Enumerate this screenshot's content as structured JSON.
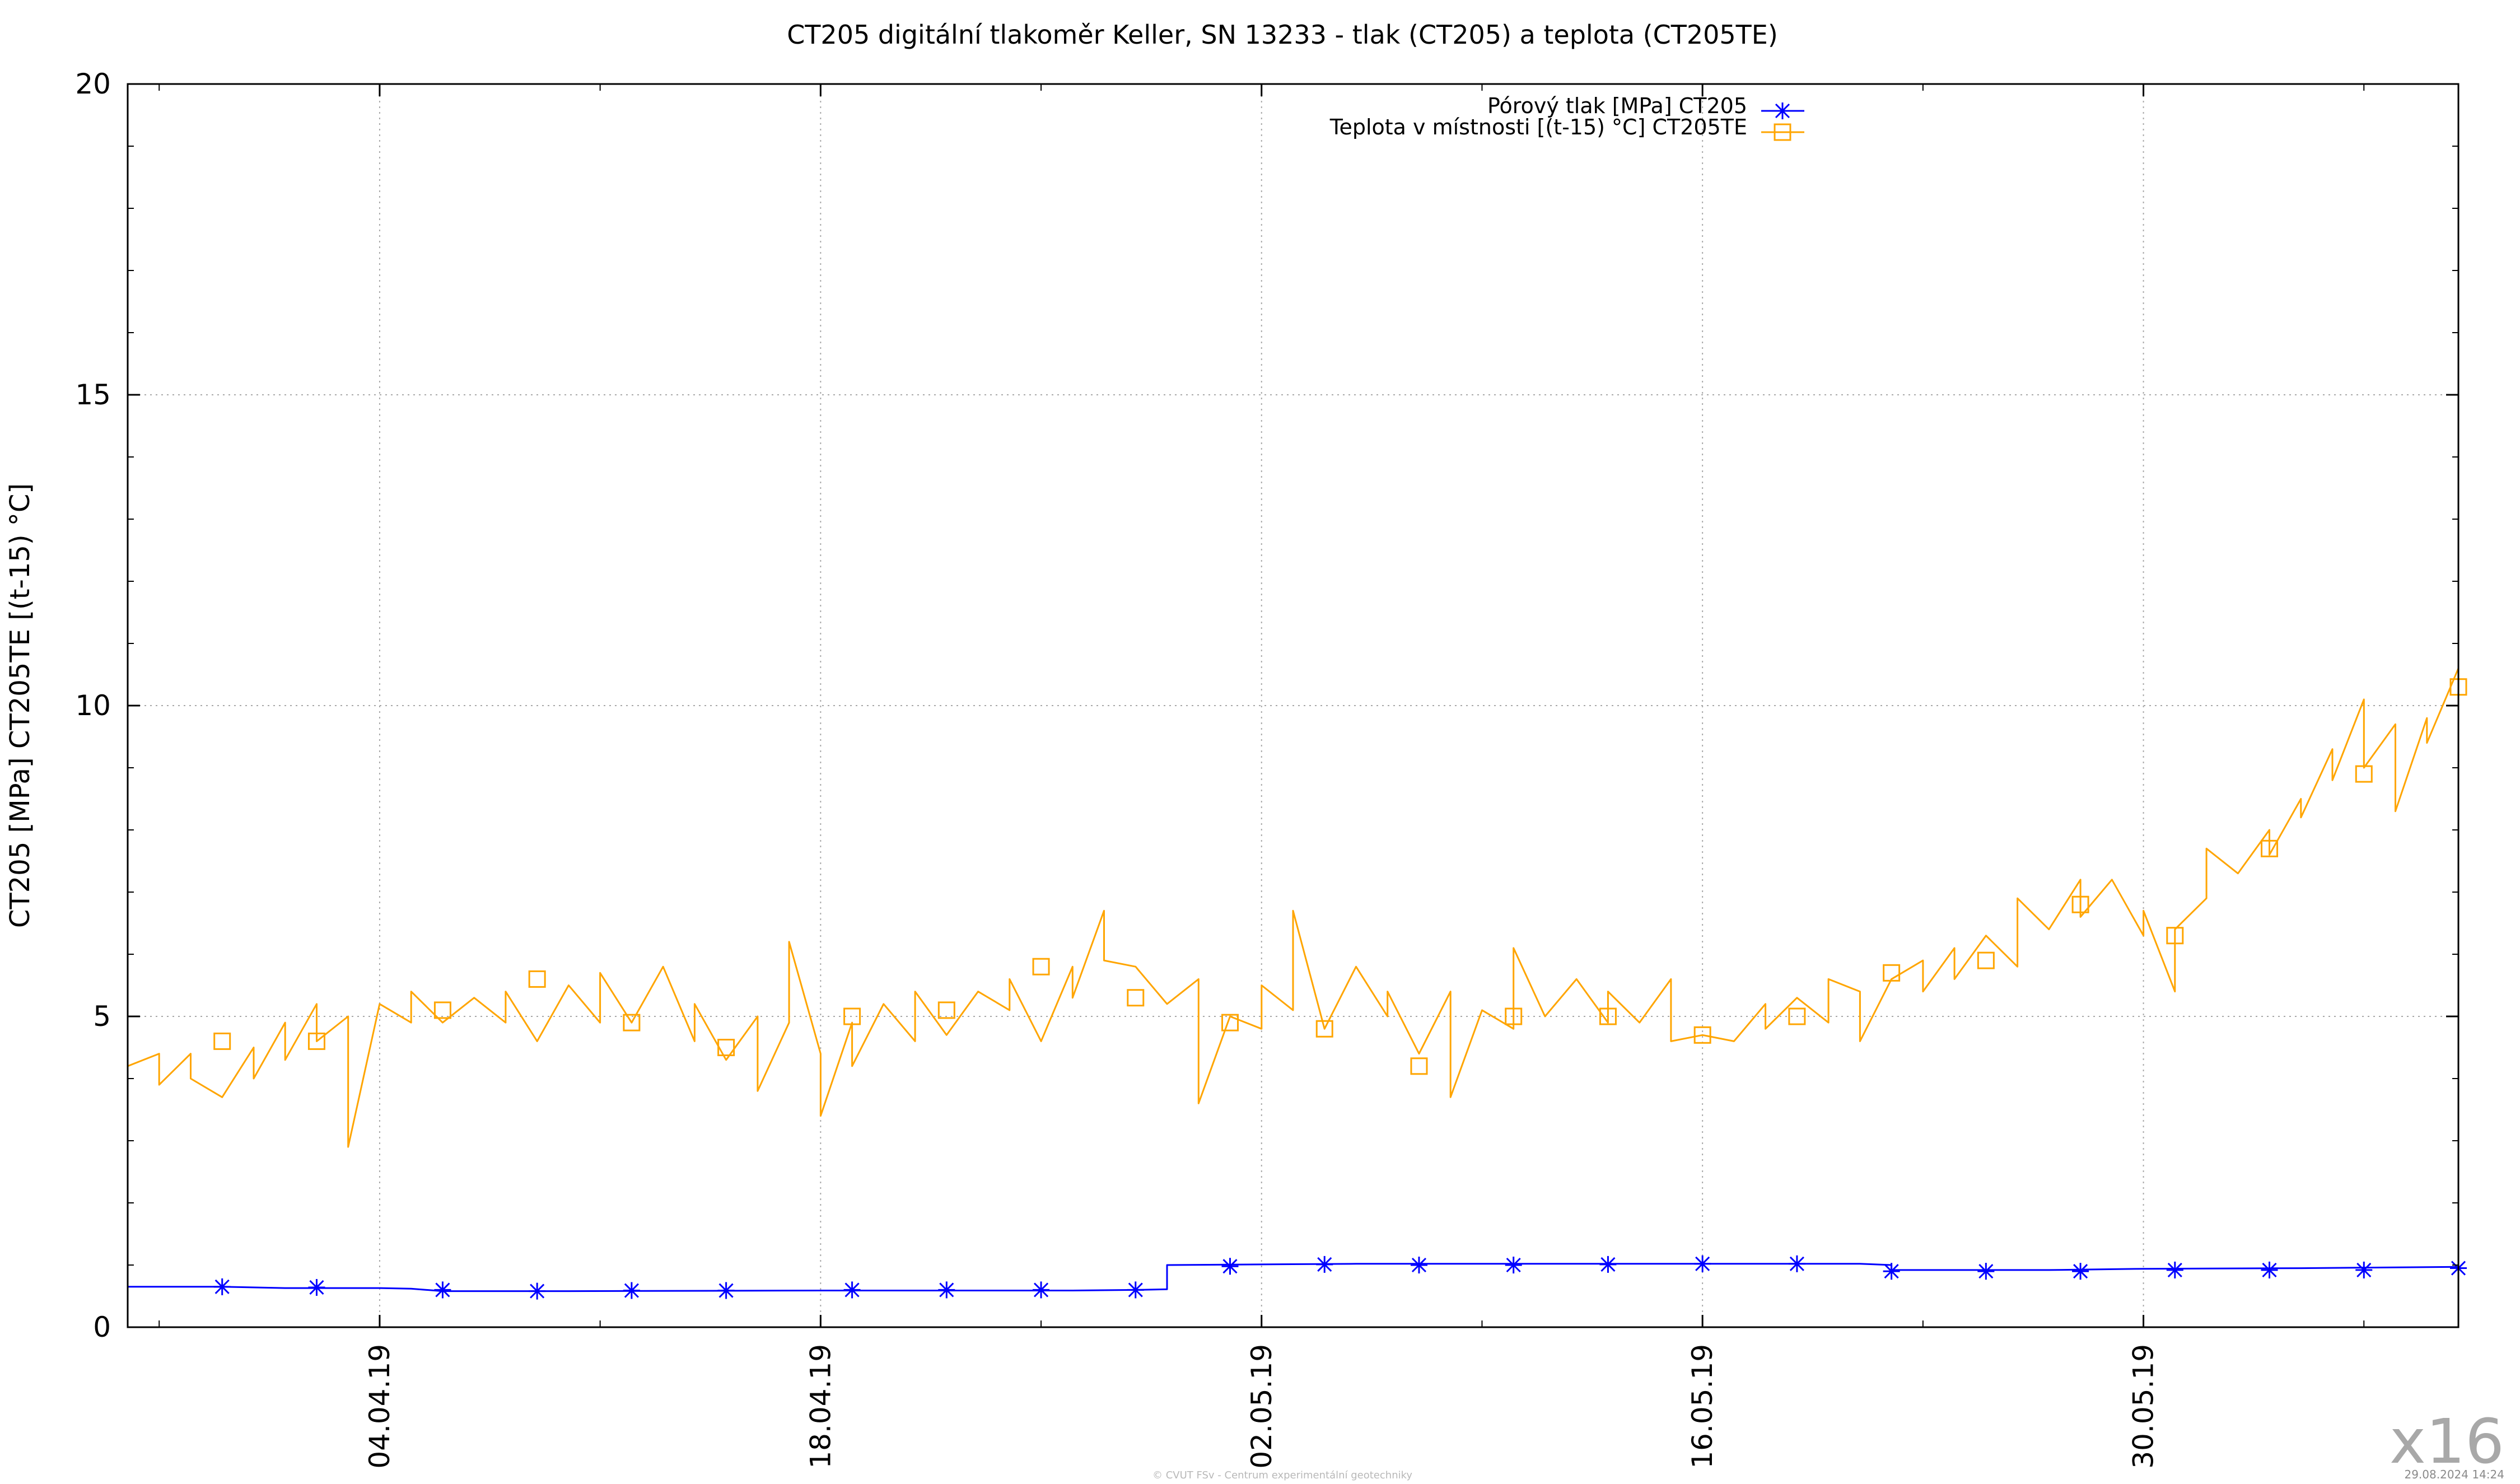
{
  "chart_data": {
    "type": "line",
    "title": "CT205 digitální tlakoměr Keller, SN 13233 - tlak (CT205) a teplota (CT205TE)",
    "ylabel": "CT205 [MPa] CT205TE [(t-15) °C]",
    "xlabel": "",
    "xlim": [
      "2019-03-27",
      "2019-06-09"
    ],
    "ylim": [
      0,
      20
    ],
    "y_ticks": [
      0,
      5,
      10,
      15,
      20
    ],
    "x_ticks": [
      {
        "date": "2019-04-04",
        "label": "04.04.19"
      },
      {
        "date": "2019-04-18",
        "label": "18.04.19"
      },
      {
        "date": "2019-05-02",
        "label": "02.05.19"
      },
      {
        "date": "2019-05-16",
        "label": "16.05.19"
      },
      {
        "date": "2019-05-30",
        "label": "30.05.19"
      }
    ],
    "grid": true,
    "legend_position": "top-center",
    "series": [
      {
        "name": "Pórový tlak [MPa] CT205",
        "color": "#0000ff",
        "marker": "asterisk",
        "points": [
          [
            "2019-03-27",
            0.0
          ],
          [
            "2019-03-27",
            0.65
          ],
          [
            "2019-03-30",
            0.65
          ],
          [
            "2019-04-01",
            0.63
          ],
          [
            "2019-04-04",
            0.63
          ],
          [
            "2019-04-05",
            0.62
          ],
          [
            "2019-04-06",
            0.58
          ],
          [
            "2019-04-10",
            0.58
          ],
          [
            "2019-04-18",
            0.59
          ],
          [
            "2019-04-26",
            0.59
          ],
          [
            "2019-04-28",
            0.6
          ],
          [
            "2019-04-29",
            0.61
          ],
          [
            "2019-04-29",
            1.0
          ],
          [
            "2019-05-05",
            1.02
          ],
          [
            "2019-05-12",
            1.02
          ],
          [
            "2019-05-16",
            1.02
          ],
          [
            "2019-05-21",
            1.02
          ],
          [
            "2019-05-22",
            1.0
          ],
          [
            "2019-05-22",
            0.92
          ],
          [
            "2019-05-27",
            0.92
          ],
          [
            "2019-05-30",
            0.94
          ],
          [
            "2019-06-04",
            0.95
          ],
          [
            "2019-06-09",
            0.97
          ]
        ],
        "markers": [
          [
            "2019-03-30",
            0.65
          ],
          [
            "2019-04-02",
            0.64
          ],
          [
            "2019-04-06",
            0.6
          ],
          [
            "2019-04-09",
            0.58
          ],
          [
            "2019-04-12",
            0.59
          ],
          [
            "2019-04-15",
            0.59
          ],
          [
            "2019-04-19",
            0.6
          ],
          [
            "2019-04-22",
            0.6
          ],
          [
            "2019-04-25",
            0.6
          ],
          [
            "2019-04-28",
            0.6
          ],
          [
            "2019-05-01",
            0.98
          ],
          [
            "2019-05-04",
            1.01
          ],
          [
            "2019-05-07",
            1.0
          ],
          [
            "2019-05-10",
            1.0
          ],
          [
            "2019-05-13",
            1.01
          ],
          [
            "2019-05-16",
            1.02
          ],
          [
            "2019-05-19",
            1.02
          ],
          [
            "2019-05-22",
            0.9
          ],
          [
            "2019-05-25",
            0.9
          ],
          [
            "2019-05-28",
            0.9
          ],
          [
            "2019-05-31",
            0.92
          ],
          [
            "2019-06-03",
            0.92
          ],
          [
            "2019-06-06",
            0.92
          ],
          [
            "2019-06-09",
            0.95
          ]
        ]
      },
      {
        "name": "Teplota v místnosti [(t-15) °C] CT205TE",
        "color": "#ffa500",
        "marker": "square",
        "points": [
          [
            "2019-03-27",
            6.3
          ],
          [
            "2019-03-27",
            4.2
          ],
          [
            "2019-03-28",
            4.4
          ],
          [
            "2019-03-28",
            3.9
          ],
          [
            "2019-03-29",
            4.4
          ],
          [
            "2019-03-29",
            4.0
          ],
          [
            "2019-03-30",
            3.7
          ],
          [
            "2019-03-31",
            4.5
          ],
          [
            "2019-03-31",
            4.0
          ],
          [
            "2019-04-01",
            4.9
          ],
          [
            "2019-04-01",
            4.3
          ],
          [
            "2019-04-02",
            5.2
          ],
          [
            "2019-04-02",
            4.6
          ],
          [
            "2019-04-03",
            5.0
          ],
          [
            "2019-04-03",
            2.9
          ],
          [
            "2019-04-04",
            5.2
          ],
          [
            "2019-04-05",
            4.9
          ],
          [
            "2019-04-05",
            5.4
          ],
          [
            "2019-04-06",
            4.9
          ],
          [
            "2019-04-07",
            5.3
          ],
          [
            "2019-04-08",
            4.9
          ],
          [
            "2019-04-08",
            5.4
          ],
          [
            "2019-04-09",
            4.6
          ],
          [
            "2019-04-10",
            5.5
          ],
          [
            "2019-04-11",
            4.9
          ],
          [
            "2019-04-11",
            5.7
          ],
          [
            "2019-04-12",
            4.9
          ],
          [
            "2019-04-13",
            5.8
          ],
          [
            "2019-04-14",
            4.6
          ],
          [
            "2019-04-14",
            5.2
          ],
          [
            "2019-04-15",
            4.3
          ],
          [
            "2019-04-16",
            5.0
          ],
          [
            "2019-04-16",
            3.8
          ],
          [
            "2019-04-17",
            4.9
          ],
          [
            "2019-04-17",
            6.2
          ],
          [
            "2019-04-18",
            4.4
          ],
          [
            "2019-04-18",
            3.4
          ],
          [
            "2019-04-19",
            4.9
          ],
          [
            "2019-04-19",
            4.2
          ],
          [
            "2019-04-20",
            5.2
          ],
          [
            "2019-04-21",
            4.6
          ],
          [
            "2019-04-21",
            5.4
          ],
          [
            "2019-04-22",
            4.7
          ],
          [
            "2019-04-23",
            5.4
          ],
          [
            "2019-04-24",
            5.1
          ],
          [
            "2019-04-24",
            5.6
          ],
          [
            "2019-04-25",
            4.6
          ],
          [
            "2019-04-26",
            5.8
          ],
          [
            "2019-04-26",
            5.3
          ],
          [
            "2019-04-27",
            6.7
          ],
          [
            "2019-04-27",
            5.9
          ],
          [
            "2019-04-28",
            5.8
          ],
          [
            "2019-04-29",
            5.2
          ],
          [
            "2019-04-30",
            5.6
          ],
          [
            "2019-04-30",
            3.6
          ],
          [
            "2019-05-01",
            5.0
          ],
          [
            "2019-05-02",
            4.8
          ],
          [
            "2019-05-02",
            5.5
          ],
          [
            "2019-05-03",
            5.1
          ],
          [
            "2019-05-03",
            6.7
          ],
          [
            "2019-05-04",
            4.8
          ],
          [
            "2019-05-05",
            5.8
          ],
          [
            "2019-05-06",
            5.0
          ],
          [
            "2019-05-06",
            5.4
          ],
          [
            "2019-05-07",
            4.4
          ],
          [
            "2019-05-08",
            5.4
          ],
          [
            "2019-05-08",
            3.7
          ],
          [
            "2019-05-09",
            5.1
          ],
          [
            "2019-05-10",
            4.8
          ],
          [
            "2019-05-10",
            6.1
          ],
          [
            "2019-05-11",
            5.0
          ],
          [
            "2019-05-12",
            5.6
          ],
          [
            "2019-05-13",
            4.9
          ],
          [
            "2019-05-13",
            5.4
          ],
          [
            "2019-05-14",
            4.9
          ],
          [
            "2019-05-15",
            5.6
          ],
          [
            "2019-05-15",
            4.6
          ],
          [
            "2019-05-16",
            4.7
          ],
          [
            "2019-05-17",
            4.6
          ],
          [
            "2019-05-18",
            5.2
          ],
          [
            "2019-05-18",
            4.8
          ],
          [
            "2019-05-19",
            5.3
          ],
          [
            "2019-05-20",
            4.9
          ],
          [
            "2019-05-20",
            5.6
          ],
          [
            "2019-05-21",
            5.4
          ],
          [
            "2019-05-21",
            4.6
          ],
          [
            "2019-05-22",
            5.6
          ],
          [
            "2019-05-23",
            5.9
          ],
          [
            "2019-05-23",
            5.4
          ],
          [
            "2019-05-24",
            6.1
          ],
          [
            "2019-05-24",
            5.6
          ],
          [
            "2019-05-25",
            6.3
          ],
          [
            "2019-05-26",
            5.8
          ],
          [
            "2019-05-26",
            6.9
          ],
          [
            "2019-05-27",
            6.4
          ],
          [
            "2019-05-28",
            7.2
          ],
          [
            "2019-05-28",
            6.6
          ],
          [
            "2019-05-29",
            7.2
          ],
          [
            "2019-05-30",
            6.3
          ],
          [
            "2019-05-30",
            6.7
          ],
          [
            "2019-05-31",
            5.4
          ],
          [
            "2019-05-31",
            6.4
          ],
          [
            "2019-06-01",
            6.9
          ],
          [
            "2019-06-01",
            7.7
          ],
          [
            "2019-06-02",
            7.3
          ],
          [
            "2019-06-03",
            8.0
          ],
          [
            "2019-06-03",
            7.6
          ],
          [
            "2019-06-04",
            8.5
          ],
          [
            "2019-06-04",
            8.2
          ],
          [
            "2019-06-05",
            9.3
          ],
          [
            "2019-06-05",
            8.8
          ],
          [
            "2019-06-06",
            10.1
          ],
          [
            "2019-06-06",
            9.0
          ],
          [
            "2019-06-07",
            9.7
          ],
          [
            "2019-06-07",
            8.3
          ],
          [
            "2019-06-08",
            9.8
          ],
          [
            "2019-06-08",
            9.4
          ],
          [
            "2019-06-09",
            10.6
          ],
          [
            "2019-06-09",
            10.3
          ]
        ],
        "markers": [
          [
            "2019-03-30",
            4.6
          ],
          [
            "2019-04-02",
            4.6
          ],
          [
            "2019-04-06",
            5.1
          ],
          [
            "2019-04-09",
            5.6
          ],
          [
            "2019-04-12",
            4.9
          ],
          [
            "2019-04-15",
            4.5
          ],
          [
            "2019-04-19",
            5.0
          ],
          [
            "2019-04-22",
            5.1
          ],
          [
            "2019-04-25",
            5.8
          ],
          [
            "2019-04-28",
            5.3
          ],
          [
            "2019-05-01",
            4.9
          ],
          [
            "2019-05-04",
            4.8
          ],
          [
            "2019-05-07",
            4.2
          ],
          [
            "2019-05-10",
            5.0
          ],
          [
            "2019-05-13",
            5.0
          ],
          [
            "2019-05-16",
            4.7
          ],
          [
            "2019-05-19",
            5.0
          ],
          [
            "2019-05-22",
            5.7
          ],
          [
            "2019-05-25",
            5.9
          ],
          [
            "2019-05-28",
            6.8
          ],
          [
            "2019-05-31",
            6.3
          ],
          [
            "2019-06-03",
            7.7
          ],
          [
            "2019-06-06",
            8.9
          ],
          [
            "2019-06-09",
            10.3
          ]
        ]
      }
    ]
  },
  "footer": {
    "copyright": "© CVUT FSv - Centrum experimentální geotechniky",
    "timestamp": "29.08.2024 14:24"
  },
  "zoom_label": "x16",
  "colors": {
    "background": "#ffffff",
    "grid": "#a8a8a8",
    "axis": "#000000"
  }
}
